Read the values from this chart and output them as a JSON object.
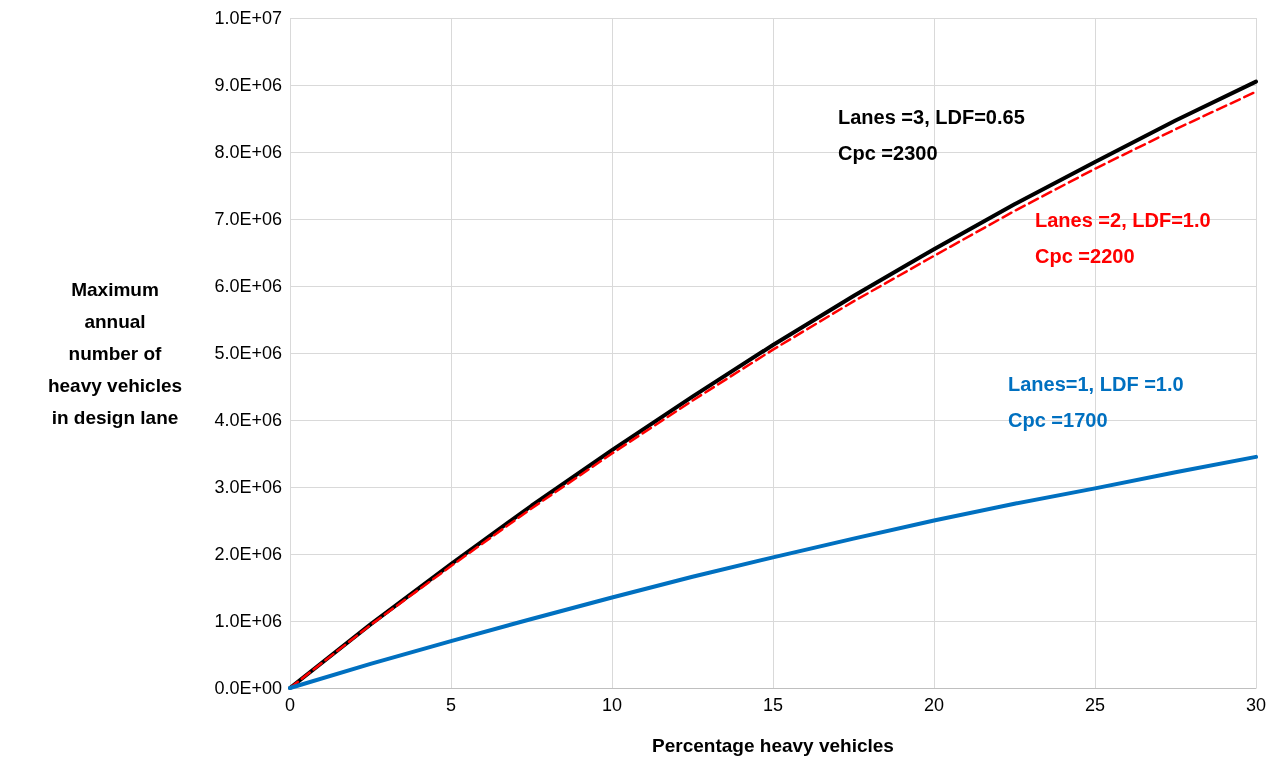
{
  "chart_data": {
    "type": "line",
    "xlabel": "Percentage heavy vehicles",
    "ylabel": "Maximum\nannual\nnumber of\nheavy vehicles\nin design lane",
    "x": [
      0,
      2.5,
      5,
      7.5,
      10,
      12.5,
      15,
      17.5,
      20,
      22.5,
      25,
      27.5,
      30
    ],
    "series": [
      {
        "name": "Lanes =3, LDF=0.65\nCpc =2300",
        "color": "#000000",
        "line_style": "solid",
        "values": [
          0,
          950000,
          1850000,
          2720000,
          3550000,
          4350000,
          5120000,
          5850000,
          6550000,
          7220000,
          7850000,
          8470000,
          9050000
        ]
      },
      {
        "name": "Lanes =2, LDF=1.0\nCpc =2200",
        "color": "#ff0000",
        "line_style": "dashed",
        "values": [
          0,
          940000,
          1820000,
          2680000,
          3500000,
          4290000,
          5050000,
          5770000,
          6450000,
          7120000,
          7750000,
          8340000,
          8900000
        ]
      },
      {
        "name": "Lanes=1, LDF =1.0\nCpc =1700",
        "color": "#0070c0",
        "line_style": "solid",
        "values": [
          0,
          360000,
          700000,
          1030000,
          1350000,
          1660000,
          1950000,
          2230000,
          2500000,
          2750000,
          2980000,
          3220000,
          3450000
        ]
      }
    ],
    "xlim": [
      0,
      30
    ],
    "xticks": [
      0,
      5,
      10,
      15,
      20,
      25,
      30
    ],
    "ylim": [
      0,
      10000000
    ],
    "yticks": [
      {
        "value": 0,
        "label": "0.0E+00"
      },
      {
        "value": 1000000,
        "label": "1.0E+06"
      },
      {
        "value": 2000000,
        "label": "2.0E+06"
      },
      {
        "value": 3000000,
        "label": "3.0E+06"
      },
      {
        "value": 4000000,
        "label": "4.0E+06"
      },
      {
        "value": 5000000,
        "label": "5.0E+06"
      },
      {
        "value": 6000000,
        "label": "6.0E+06"
      },
      {
        "value": 7000000,
        "label": "7.0E+06"
      },
      {
        "value": 8000000,
        "label": "8.0E+06"
      },
      {
        "value": 9000000,
        "label": "9.0E+06"
      },
      {
        "value": 10000000,
        "label": "1.0E+07"
      }
    ],
    "grid": true,
    "legend": false,
    "marker": "none"
  }
}
